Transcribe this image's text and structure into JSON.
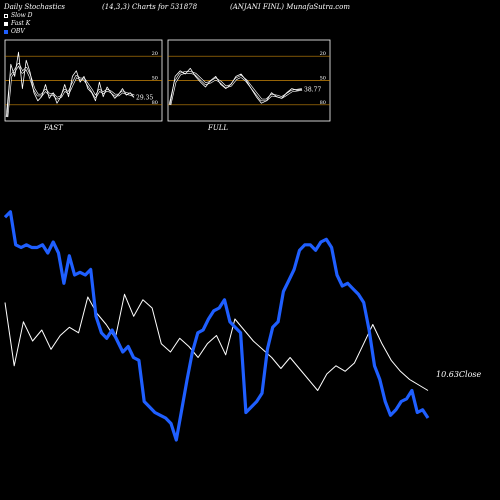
{
  "header": {
    "left": "Daily Stochastics",
    "center": "(14,3,3) Charts for 531878",
    "right": "(ANJANI FINL) MunafaSutra.com"
  },
  "legend": [
    {
      "label": "Slow D",
      "color": "#000000"
    },
    {
      "label": "Fast K",
      "color": "#ffffff"
    },
    {
      "label": "OBV",
      "color": "#1f5fff"
    }
  ],
  "colors": {
    "obv": "#1f5fff",
    "close": "#ffffff",
    "level_line": "#c8860a",
    "panel_border": "#ffffff"
  },
  "chart_data": [
    {
      "type": "line",
      "title": "FAST",
      "ylim": [
        0,
        100
      ],
      "level_lines": [
        20,
        50,
        80
      ],
      "tick_labels": [
        "80",
        "50",
        "20"
      ],
      "last_value_label": "29.35",
      "series": [
        {
          "name": "Fast K",
          "values": [
            5,
            70,
            55,
            85,
            40,
            75,
            60,
            35,
            25,
            30,
            45,
            28,
            35,
            22,
            30,
            45,
            30,
            55,
            62,
            48,
            55,
            40,
            35,
            25,
            48,
            30,
            42,
            35,
            28,
            33,
            40,
            32,
            35,
            29
          ]
        },
        {
          "name": "Slow D",
          "values": [
            5,
            55,
            62,
            70,
            60,
            65,
            55,
            40,
            32,
            32,
            38,
            33,
            33,
            28,
            30,
            38,
            35,
            45,
            55,
            52,
            52,
            45,
            38,
            30,
            38,
            35,
            38,
            36,
            32,
            32,
            36,
            34,
            33,
            31
          ]
        }
      ]
    },
    {
      "type": "line",
      "title": "FULL",
      "ylim": [
        0,
        100
      ],
      "level_lines": [
        20,
        50,
        80
      ],
      "tick_labels": [
        "80",
        "50",
        "20"
      ],
      "last_value_label": "38.77",
      "series": [
        {
          "name": "Fast K",
          "values": [
            20,
            55,
            62,
            58,
            65,
            55,
            48,
            42,
            50,
            55,
            45,
            40,
            45,
            55,
            58,
            50,
            40,
            30,
            22,
            25,
            35,
            30,
            28,
            35,
            40,
            38,
            39
          ]
        },
        {
          "name": "Slow D",
          "values": [
            20,
            48,
            58,
            60,
            60,
            58,
            52,
            46,
            48,
            52,
            48,
            42,
            44,
            52,
            55,
            50,
            42,
            34,
            26,
            26,
            32,
            31,
            29,
            33,
            37,
            38,
            39
          ]
        }
      ]
    },
    {
      "type": "line",
      "title": "",
      "ylim": [
        0,
        1
      ],
      "close_label": "10.63Close",
      "series": [
        {
          "name": "OBV",
          "values": [
            0.81,
            0.83,
            0.71,
            0.7,
            0.71,
            0.7,
            0.7,
            0.71,
            0.68,
            0.72,
            0.68,
            0.57,
            0.67,
            0.6,
            0.61,
            0.6,
            0.62,
            0.45,
            0.39,
            0.37,
            0.4,
            0.36,
            0.32,
            0.34,
            0.3,
            0.29,
            0.14,
            0.12,
            0.1,
            0.09,
            0.08,
            0.06,
            0.0,
            0.11,
            0.22,
            0.32,
            0.39,
            0.4,
            0.44,
            0.47,
            0.48,
            0.51,
            0.43,
            0.41,
            0.39,
            0.1,
            0.12,
            0.14,
            0.17,
            0.33,
            0.41,
            0.43,
            0.54,
            0.58,
            0.62,
            0.69,
            0.71,
            0.71,
            0.69,
            0.72,
            0.73,
            0.7,
            0.6,
            0.56,
            0.57,
            0.55,
            0.53,
            0.5,
            0.4,
            0.27,
            0.22,
            0.14,
            0.09,
            0.11,
            0.14,
            0.15,
            0.18,
            0.1,
            0.11,
            0.08
          ]
        },
        {
          "name": "Close",
          "values": [
            0.5,
            0.27,
            0.43,
            0.36,
            0.4,
            0.33,
            0.38,
            0.41,
            0.39,
            0.52,
            0.46,
            0.42,
            0.37,
            0.53,
            0.45,
            0.51,
            0.48,
            0.35,
            0.32,
            0.37,
            0.34,
            0.3,
            0.35,
            0.38,
            0.31,
            0.44,
            0.4,
            0.36,
            0.33,
            0.3,
            0.26,
            0.3,
            0.26,
            0.22,
            0.18,
            0.24,
            0.27,
            0.25,
            0.28,
            0.35,
            0.42,
            0.35,
            0.29,
            0.25,
            0.22,
            0.2,
            0.18
          ]
        }
      ]
    }
  ]
}
